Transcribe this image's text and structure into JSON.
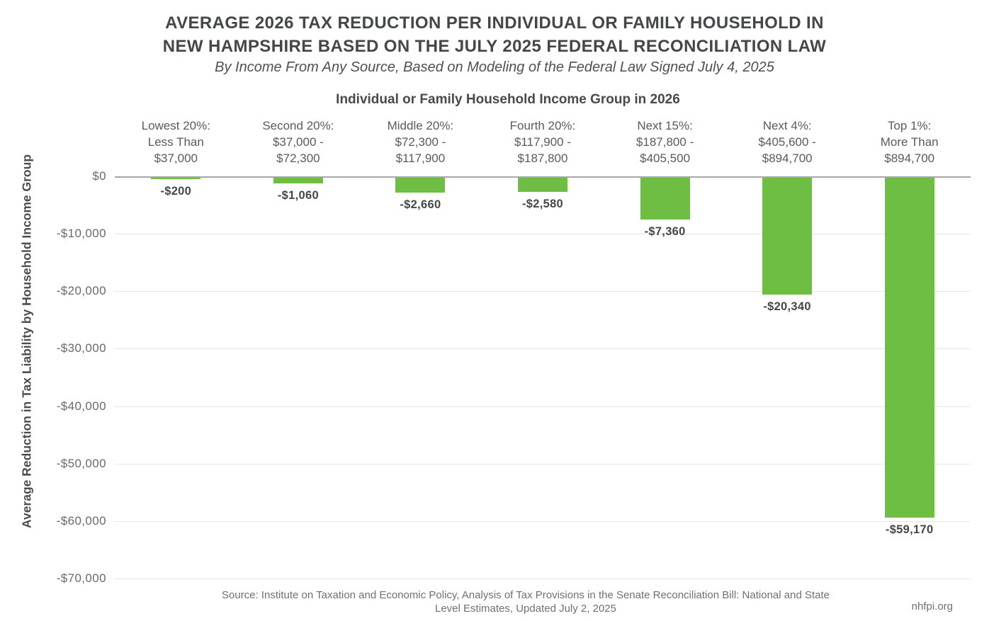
{
  "chart_data": {
    "type": "bar",
    "title": "AVERAGE 2026 TAX REDUCTION PER INDIVIDUAL OR FAMILY HOUSEHOLD IN NEW HAMPSHIRE BASED ON THE JULY 2025 FEDERAL RECONCILIATION LAW",
    "title_lines": [
      "AVERAGE 2026 TAX REDUCTION PER INDIVIDUAL OR FAMILY HOUSEHOLD IN",
      "NEW HAMPSHIRE BASED ON THE JULY 2025 FEDERAL RECONCILIATION LAW"
    ],
    "subtitle": "By Income From Any Source, Based on Modeling of the Federal Law Signed July 4, 2025",
    "xlabel": "Individual or Family Household Income Group in 2026",
    "ylabel": "Average Reduction in Tax Liability by Household Income Group",
    "categories": [
      "Lowest 20%: Less Than $37,000",
      "Second 20%: $37,000 - $72,300",
      "Middle 20%: $72,300 - $117,900",
      "Fourth 20%: $117,900 - $187,800",
      "Next 15%: $187,800 - $405,500",
      "Next 4%: $405,600 - $894,700",
      "Top 1%: More Than $894,700"
    ],
    "category_label_lines": [
      [
        "Lowest 20%:",
        "Less Than",
        "$37,000"
      ],
      [
        "Second 20%:",
        "$37,000 -",
        "$72,300"
      ],
      [
        "Middle 20%:",
        "$72,300 -",
        "$117,900"
      ],
      [
        "Fourth 20%:",
        "$117,900 -",
        "$187,800"
      ],
      [
        "Next 15%:",
        "$187,800 -",
        "$405,500"
      ],
      [
        "Next 4%:",
        "$405,600 -",
        "$894,700"
      ],
      [
        "Top 1%:",
        "More Than",
        "$894,700"
      ]
    ],
    "values": [
      -200,
      -1060,
      -2660,
      -2580,
      -7360,
      -20340,
      -59170
    ],
    "value_labels": [
      "-$200",
      "-$1,060",
      "-$2,660",
      "-$2,580",
      "-$7,360",
      "-$20,340",
      "-$59,170"
    ],
    "ylim": [
      -70000,
      0
    ],
    "y_ticks": [
      "$0",
      "-$10,000",
      "-$20,000",
      "-$30,000",
      "-$40,000",
      "-$50,000",
      "-$60,000",
      "-$70,000"
    ],
    "grid": true,
    "legend": false,
    "bar_color": "#6FBE44"
  },
  "footer": {
    "source_lines": [
      "Source: Institute on Taxation and Economic Policy, Analysis of Tax Provisions in the Senate Reconciliation Bill: National and State",
      "Level Estimates, Updated July 2, 2025"
    ],
    "site": "nhfpi.org"
  },
  "colors": {
    "bar": "#6FBE44",
    "zero_line": "#a6a8ab",
    "gridline": "#e6e6e7"
  }
}
